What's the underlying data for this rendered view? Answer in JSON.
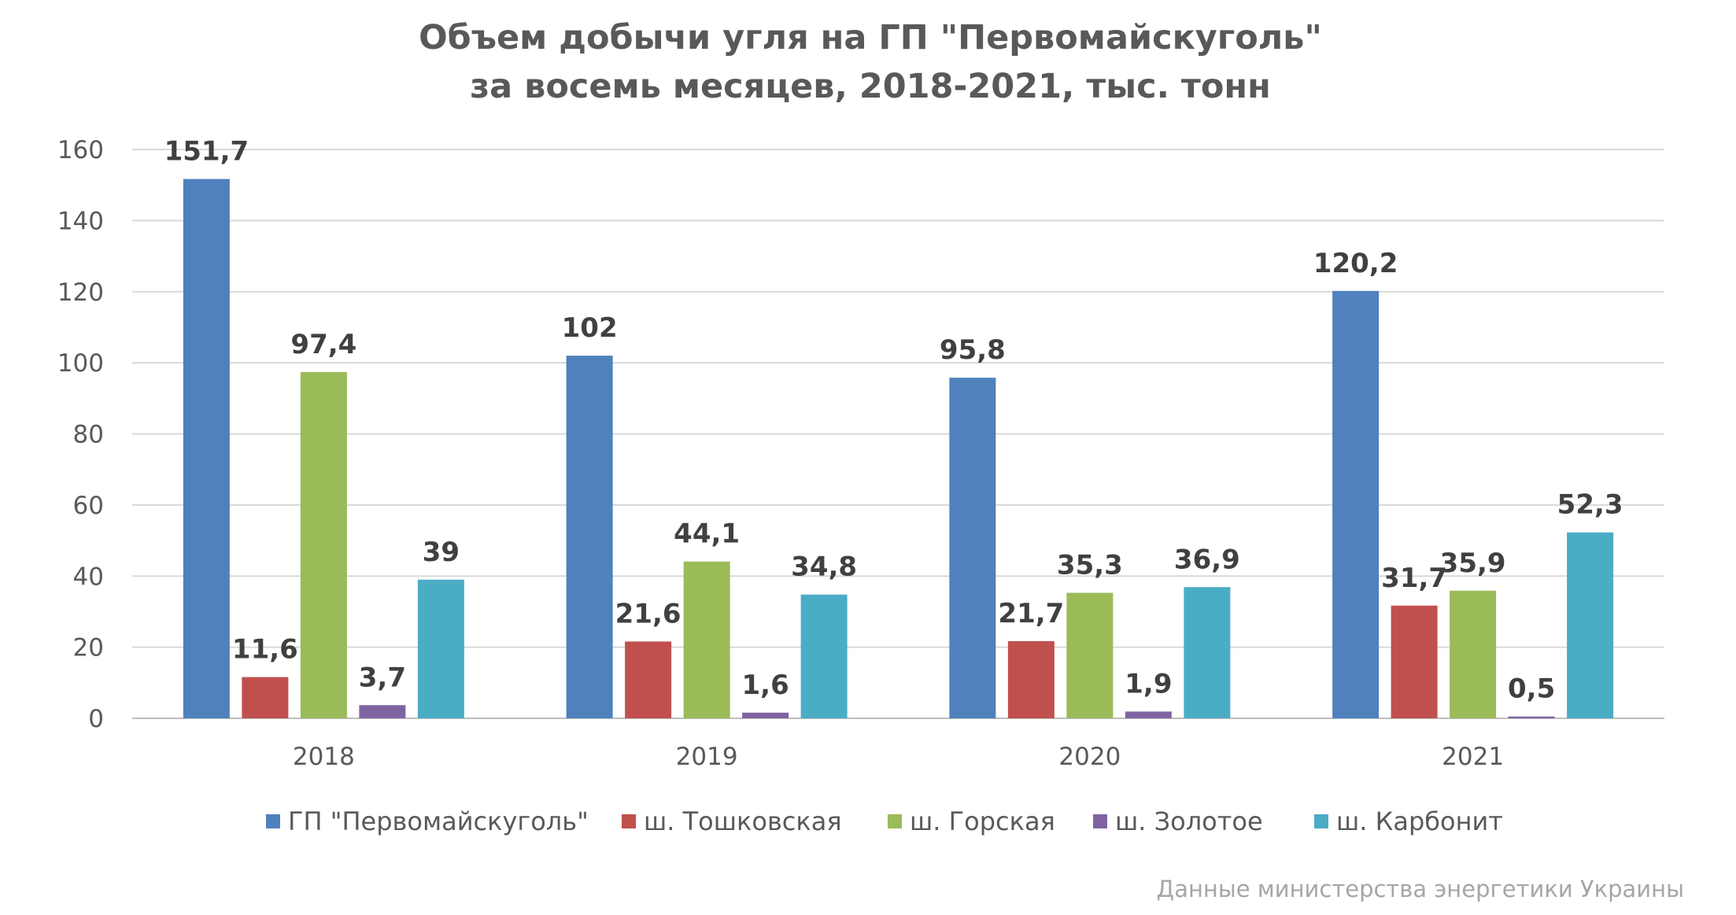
{
  "chart_data": {
    "type": "bar",
    "title_lines": [
      "Объем добычи угля на ГП \"Первомайскуголь\"",
      "за восемь месяцев, 2018-2021, тыс. тонн"
    ],
    "xlabel": "",
    "ylabel": "",
    "categories": [
      "2018",
      "2019",
      "2020",
      "2021"
    ],
    "ylim": [
      0,
      160
    ],
    "yticks": [
      0,
      20,
      40,
      60,
      80,
      100,
      120,
      140,
      160
    ],
    "ytick_labels": [
      "0",
      "20",
      "40",
      "60",
      "80",
      "100",
      "120",
      "140",
      "160"
    ],
    "grid": true,
    "legend_position": "bottom",
    "series": [
      {
        "name": "ГП \"Первомайскуголь\"",
        "color": "#4f81bd",
        "values": [
          151.7,
          102,
          95.8,
          120.2
        ],
        "labels": [
          "151,7",
          "102",
          "95,8",
          "120,2"
        ]
      },
      {
        "name": "ш. Тошковская",
        "color": "#c0504d",
        "values": [
          11.6,
          21.6,
          21.7,
          31.7
        ],
        "labels": [
          "11,6",
          "21,6",
          "21,7",
          "31,7"
        ]
      },
      {
        "name": "ш. Горская",
        "color": "#9bbb59",
        "values": [
          97.4,
          44.1,
          35.3,
          35.9
        ],
        "labels": [
          "97,4",
          "44,1",
          "35,3",
          "35,9"
        ]
      },
      {
        "name": "ш. Золотое",
        "color": "#8064a2",
        "values": [
          3.7,
          1.6,
          1.9,
          0.5
        ],
        "labels": [
          "3,7",
          "1,6",
          "1,9",
          "0,5"
        ]
      },
      {
        "name": "ш. Карбонит",
        "color": "#4bacc6",
        "values": [
          39,
          34.8,
          36.9,
          52.3
        ],
        "labels": [
          "39",
          "34,8",
          "36,9",
          "52,3"
        ]
      }
    ],
    "source_note": "Данные министерства энергетики Украины"
  }
}
